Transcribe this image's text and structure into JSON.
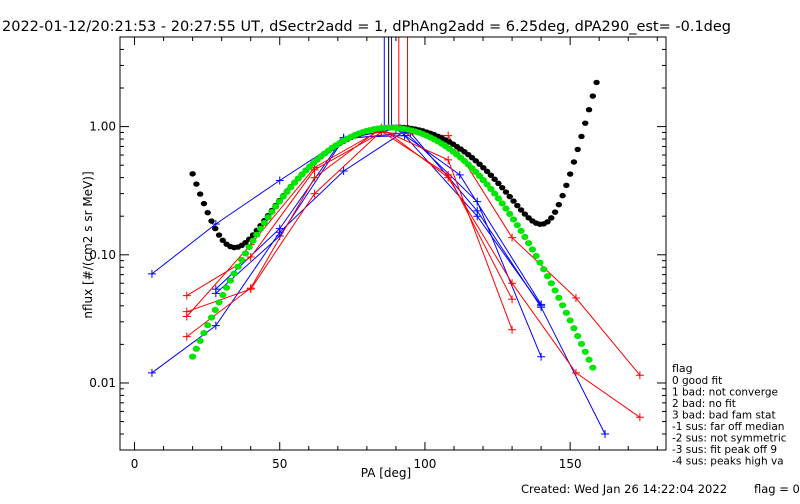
{
  "title": "2022-01-12/20:21:53 - 20:27:55 UT, dSectr2add = 1, dPhAng2add = 6.25deg, dPA290_est=  -0.1deg",
  "footer": {
    "created": "Created: Wed Jan 26 14:22:04 2022",
    "flag_text": "flag = 0"
  },
  "legend": {
    "title": "flag",
    "items": [
      " 0 good fit",
      " 1 bad: not converge",
      " 2 bad: no fit",
      " 3 bad: bad fam stat",
      "-1 sus: far off median",
      "-2 sus: not symmetric",
      "-3 sus: fit peak off 9",
      "-4 sus: peaks high va"
    ]
  },
  "chart_data": {
    "type": "line",
    "xlabel": "PA [deg]",
    "ylabel": "nflux [#/(cm2 s sr MeV)]",
    "xlim": [
      -5,
      183
    ],
    "ylim": [
      0.003,
      5
    ],
    "y_scale": "log",
    "x_ticks": [
      0,
      50,
      100,
      150
    ],
    "x_tick_labels": [
      "0",
      "50",
      "100",
      "150"
    ],
    "y_ticks": [
      0.01,
      0.1,
      1.0
    ],
    "y_tick_labels": [
      "0.01",
      "0.10",
      "1.00"
    ],
    "vertical_markers": [
      {
        "x": 86,
        "color": "#0000ff"
      },
      {
        "x": 87.5,
        "color": "#000000"
      },
      {
        "x": 88.5,
        "color": "#0000ff"
      },
      {
        "x": 91,
        "color": "#ff0000"
      },
      {
        "x": 94,
        "color": "#ff0000"
      }
    ],
    "series": [
      {
        "color": "#0000ff",
        "x": [
          6,
          28,
          50,
          72,
          90,
          112,
          140
        ],
        "y": [
          0.071,
          0.174,
          0.38,
          0.8,
          0.96,
          0.42,
          0.041
        ]
      },
      {
        "color": "#0000ff",
        "x": [
          6,
          28,
          50,
          72,
          93,
          118,
          140
        ],
        "y": [
          0.012,
          0.028,
          0.15,
          0.45,
          0.92,
          0.26,
          0.016
        ]
      },
      {
        "color": "#0000ff",
        "x": [
          28,
          50,
          72,
          95,
          118,
          140,
          162
        ],
        "y": [
          0.05,
          0.14,
          0.8,
          0.9,
          0.22,
          0.039,
          0.004
        ]
      },
      {
        "color": "#0000ff",
        "x": [
          28,
          50,
          72,
          93,
          118,
          140
        ],
        "y": [
          0.054,
          0.16,
          0.82,
          0.85,
          0.2,
          0.04
        ]
      },
      {
        "color": "#ff0000",
        "x": [
          18,
          40,
          62,
          85,
          108,
          130,
          152,
          174
        ],
        "y": [
          0.048,
          0.096,
          0.46,
          0.9,
          0.85,
          0.136,
          0.046,
          0.0115
        ]
      },
      {
        "color": "#ff0000",
        "x": [
          18,
          40,
          62,
          85,
          108,
          130,
          152,
          174
        ],
        "y": [
          0.023,
          0.055,
          0.4,
          0.98,
          0.4,
          0.06,
          0.012,
          0.0054
        ]
      },
      {
        "color": "#ff0000",
        "x": [
          18,
          40,
          62,
          85,
          108,
          130
        ],
        "y": [
          0.033,
          0.12,
          0.48,
          0.95,
          0.55,
          0.026
        ]
      },
      {
        "color": "#ff0000",
        "x": [
          18,
          40,
          62,
          85,
          108,
          130
        ],
        "y": [
          0.036,
          0.054,
          0.3,
          0.92,
          0.42,
          0.045
        ]
      }
    ],
    "fit_curves": [
      {
        "color": "#000000",
        "x_range": [
          20,
          160
        ],
        "formula": "cos_power_plus_loss_cone"
      },
      {
        "color": "#00e600",
        "x_range": [
          20,
          158
        ],
        "formula": "gaussian_like"
      }
    ]
  }
}
